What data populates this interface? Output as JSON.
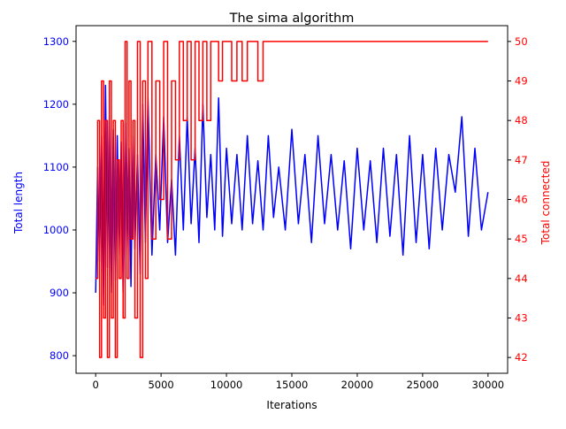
{
  "chart_data": {
    "type": "line",
    "title": "The sima algorithm",
    "xlabel": "Iterations",
    "xlim": [
      -1500,
      31500
    ],
    "xticks": [
      0,
      5000,
      10000,
      15000,
      20000,
      25000,
      30000
    ],
    "y_left": {
      "label": "Total length",
      "color": "#0000ff",
      "ylim": [
        772,
        1325
      ],
      "ticks": [
        800,
        900,
        1000,
        1100,
        1200,
        1300
      ]
    },
    "y_right": {
      "label": "Total connected",
      "color": "#ff0000",
      "ylim": [
        41.6,
        50.4
      ],
      "ticks": [
        42,
        43,
        44,
        45,
        46,
        47,
        48,
        49,
        50
      ]
    },
    "series": [
      {
        "axis": "left",
        "color": "#0000ff",
        "x": [
          0,
          150,
          300,
          450,
          600,
          750,
          900,
          1050,
          1200,
          1350,
          1500,
          1650,
          1800,
          1950,
          2100,
          2250,
          2400,
          2550,
          2700,
          2850,
          3000,
          3200,
          3400,
          3600,
          3800,
          4000,
          4300,
          4600,
          4900,
          5200,
          5500,
          5800,
          6100,
          6400,
          6700,
          7000,
          7300,
          7600,
          7900,
          8200,
          8500,
          8800,
          9100,
          9400,
          9700,
          10000,
          10400,
          10800,
          11200,
          11600,
          12000,
          12400,
          12800,
          13200,
          13600,
          14000,
          14500,
          15000,
          15500,
          16000,
          16500,
          17000,
          17500,
          18000,
          18500,
          19000,
          19500,
          20000,
          20500,
          21000,
          21500,
          22000,
          22500,
          23000,
          23500,
          24000,
          24500,
          25000,
          25500,
          26000,
          26500,
          27000,
          27500,
          28000,
          28500,
          29000,
          29500,
          30000
        ],
        "values": [
          900,
          1100,
          950,
          1150,
          880,
          1230,
          940,
          1180,
          900,
          1160,
          920,
          1150,
          960,
          1140,
          900,
          1170,
          960,
          1130,
          910,
          1150,
          970,
          1120,
          930,
          1200,
          980,
          1210,
          960,
          1120,
          1000,
          1180,
          980,
          1080,
          960,
          1150,
          1000,
          1180,
          1010,
          1130,
          980,
          1200,
          1020,
          1120,
          1000,
          1210,
          990,
          1130,
          1010,
          1120,
          1000,
          1150,
          1010,
          1110,
          1000,
          1150,
          1020,
          1100,
          1000,
          1160,
          1010,
          1120,
          980,
          1150,
          1010,
          1120,
          1000,
          1110,
          970,
          1130,
          1000,
          1110,
          980,
          1130,
          990,
          1120,
          960,
          1150,
          980,
          1120,
          970,
          1130,
          1000,
          1120,
          1060,
          1180,
          990,
          1130,
          1000,
          1060
        ]
      },
      {
        "axis": "right",
        "color": "#ff0000",
        "step": true,
        "x": [
          0,
          150,
          300,
          450,
          600,
          750,
          900,
          1050,
          1200,
          1350,
          1500,
          1650,
          1800,
          1950,
          2100,
          2250,
          2400,
          2550,
          2700,
          2850,
          3000,
          3200,
          3400,
          3600,
          3800,
          4000,
          4300,
          4600,
          4900,
          5200,
          5500,
          5800,
          6100,
          6400,
          6700,
          7000,
          7300,
          7600,
          7900,
          8200,
          8500,
          8800,
          9100,
          9400,
          9700,
          10000,
          10400,
          10800,
          11200,
          11600,
          12000,
          12400,
          12800,
          30000
        ],
        "values": [
          44,
          48,
          42,
          49,
          43,
          48,
          42,
          49,
          43,
          48,
          42,
          47,
          44,
          48,
          43,
          50,
          44,
          49,
          45,
          48,
          43,
          50,
          42,
          49,
          44,
          50,
          45,
          49,
          46,
          50,
          45,
          49,
          47,
          50,
          48,
          50,
          47,
          50,
          48,
          50,
          48,
          50,
          50,
          49,
          50,
          50,
          49,
          50,
          49,
          50,
          50,
          49,
          50,
          50
        ]
      }
    ],
    "grid": false,
    "legend": "none"
  }
}
